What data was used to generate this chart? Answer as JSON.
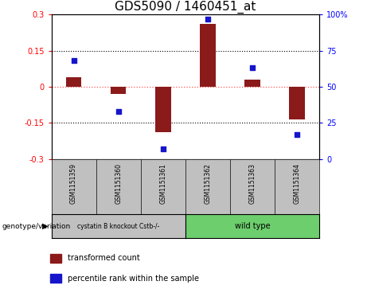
{
  "title": "GDS5090 / 1460451_at",
  "samples": [
    "GSM1151359",
    "GSM1151360",
    "GSM1151361",
    "GSM1151362",
    "GSM1151363",
    "GSM1151364"
  ],
  "transformed_count": [
    0.04,
    -0.03,
    -0.19,
    0.26,
    0.03,
    -0.135
  ],
  "percentile_rank": [
    68,
    33,
    7,
    97,
    63,
    17
  ],
  "group_colors": [
    "#c0c0c0",
    "#6dce6d"
  ],
  "sample_box_color": "#c0c0c0",
  "ylim_left": [
    -0.3,
    0.3
  ],
  "ylim_right": [
    0,
    100
  ],
  "bar_color": "#8B1a1a",
  "dot_color": "#1515cc",
  "bar_width": 0.35,
  "hline_color": "#FF5555",
  "dotted_color": "black",
  "legend_bar_label": "transformed count",
  "legend_dot_label": "percentile rank within the sample",
  "genotype_label": "genotype/variation",
  "group1_label": "cystatin B knockout Cstb-/-",
  "group2_label": "wild type",
  "title_fontsize": 11,
  "tick_fontsize": 7,
  "ytick_labels_left": [
    "-0.3",
    "-0.15",
    "0",
    "0.15",
    "0.3"
  ],
  "ytick_labels_right": [
    "0",
    "25",
    "50",
    "75",
    "100%"
  ]
}
